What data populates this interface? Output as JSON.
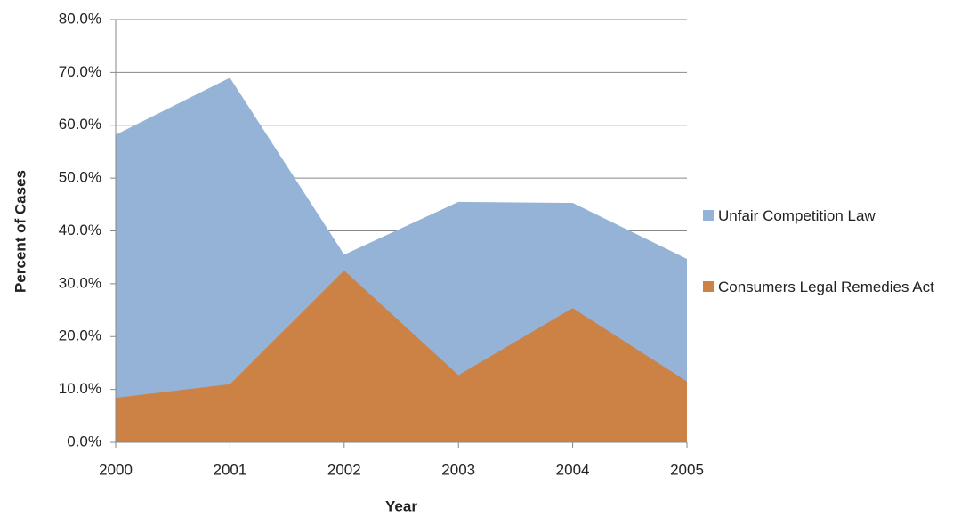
{
  "chart_data": {
    "type": "area",
    "x_label": "Year",
    "y_label": "Percent of Cases",
    "x": [
      2000,
      2001,
      2002,
      2003,
      2004,
      2005
    ],
    "xlim": [
      2000,
      2005
    ],
    "xticks": [
      2000,
      2001,
      2002,
      2003,
      2004,
      2005
    ],
    "ylim": [
      0,
      80
    ],
    "yticks": [
      {
        "value": 0,
        "label": "0.0%"
      },
      {
        "value": 10,
        "label": "10.0%"
      },
      {
        "value": 20,
        "label": "20.0%"
      },
      {
        "value": 30,
        "label": "30.0%"
      },
      {
        "value": 40,
        "label": "40.0%"
      },
      {
        "value": 50,
        "label": "50.0%"
      },
      {
        "value": 60,
        "label": "60.0%"
      },
      {
        "value": 70,
        "label": "70.0%"
      },
      {
        "value": 80,
        "label": "80.0%"
      }
    ],
    "grid": true,
    "legend": "right",
    "series": [
      {
        "name": "Unfair Competition Law",
        "color": "#95b3d7",
        "values": [
          58.2,
          69.0,
          35.5,
          45.5,
          45.3,
          34.7
        ]
      },
      {
        "name": "Consumers Legal Remedies Act",
        "color": "#cd8245",
        "values": [
          8.4,
          11.0,
          32.5,
          12.7,
          25.4,
          11.5
        ]
      }
    ]
  }
}
